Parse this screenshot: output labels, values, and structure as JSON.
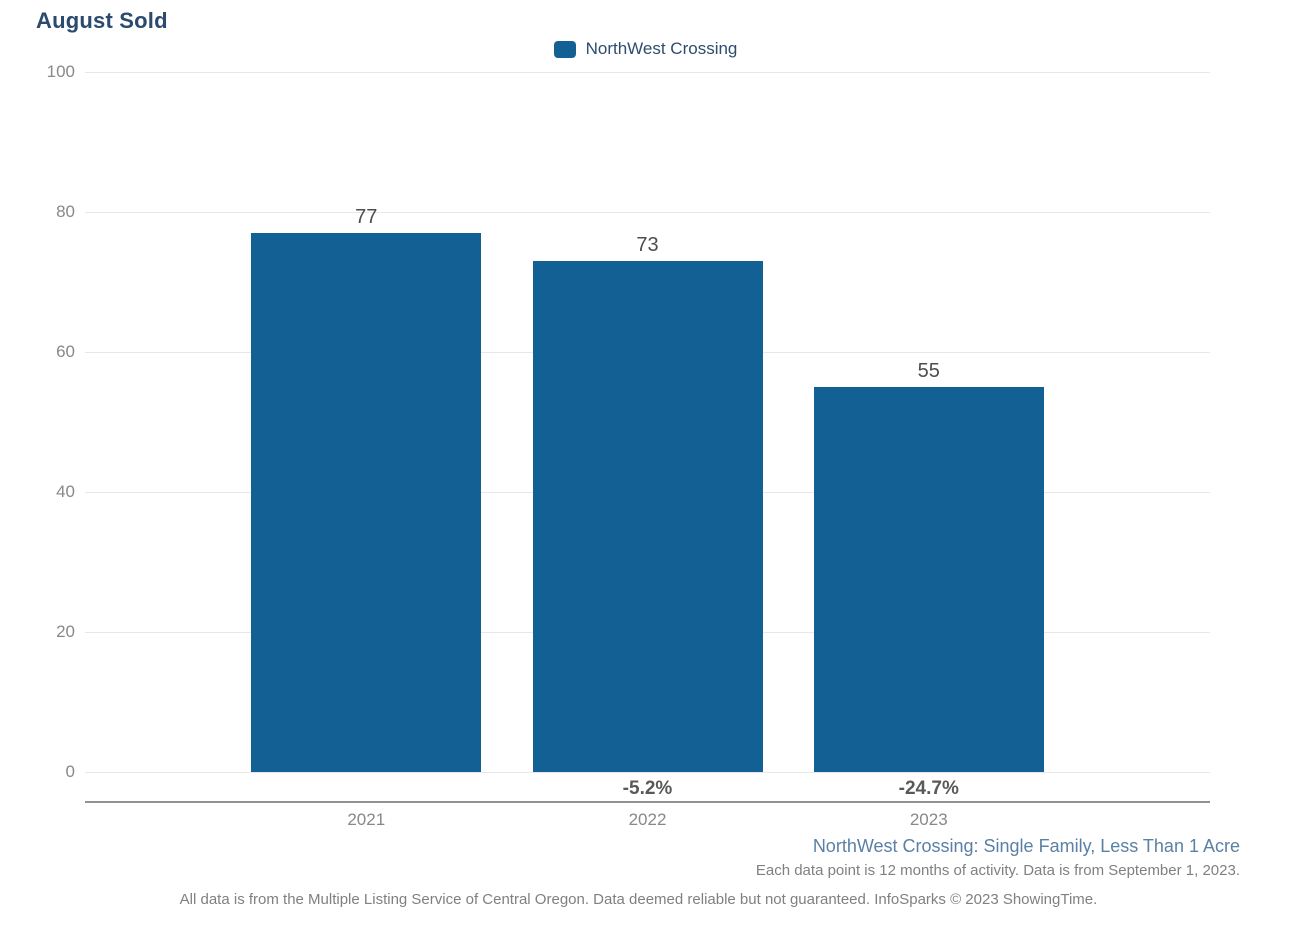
{
  "page": {
    "title": "August Sold"
  },
  "legend": {
    "label": "NorthWest Crossing"
  },
  "chart_data": {
    "type": "bar",
    "title": "August Sold",
    "categories": [
      "2021",
      "2022",
      "2023"
    ],
    "series": [
      {
        "name": "NorthWest Crossing",
        "values": [
          77,
          73,
          55
        ]
      }
    ],
    "value_labels": [
      "77",
      "73",
      "55"
    ],
    "pct_change_labels": [
      "",
      "-5.2%",
      "-24.7%"
    ],
    "xlabel": "",
    "ylabel": "",
    "ylim": [
      0,
      100
    ],
    "yticks": [
      0,
      20,
      40,
      60,
      80,
      100
    ],
    "grid": "horizontal",
    "legend_position": "top-center"
  },
  "footnotes": {
    "series_description": "NorthWest Crossing: Single Family, Less Than 1 Acre",
    "data_note": "Each data point is 12 months of activity. Data is from September 1, 2023.",
    "disclaimer": "All data is from the Multiple Listing Service of Central Oregon. Data deemed reliable but not guaranteed. InfoSparks © 2023 ShowingTime."
  },
  "colors": {
    "bar": "#136094",
    "title": "#2a4a6e",
    "legend_text": "#2c4d6e",
    "gridline": "#e8e8e8",
    "axis_line": "#919191",
    "axis_text": "#888888",
    "value_label": "#4d4d4d",
    "pct_label": "#595959",
    "series_footnote": "#5b80a5",
    "footnote_gray": "#808080"
  }
}
